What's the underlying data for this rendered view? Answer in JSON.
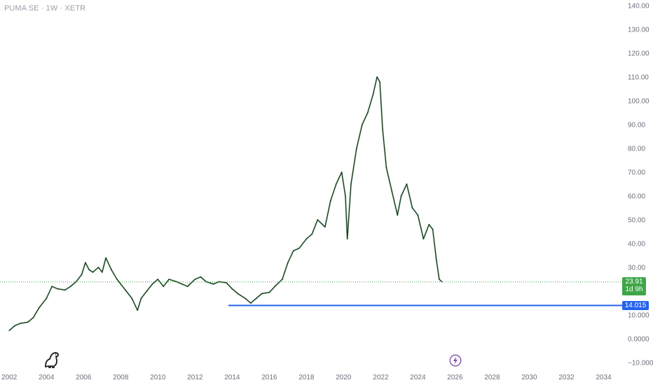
{
  "header": {
    "title": "PUMA SE · 1W · XETR"
  },
  "icons": {
    "logo": "tradingview-dino-icon",
    "event": "lightning-bolt-icon"
  },
  "colors": {
    "price_line": "#1f2a1f",
    "up": "#2e9e44",
    "level_line": "#2563eb",
    "current_line": "#3ea548",
    "axis_text": "#6b6f7a"
  },
  "price_badge": {
    "value": "23.91",
    "countdown": "1d 9h"
  },
  "level_badge": {
    "value": "14.015"
  },
  "chart_data": {
    "type": "line",
    "title": "",
    "xlabel": "",
    "ylabel": "",
    "xlim": [
      2001.5,
      2035.0
    ],
    "ylim": [
      -10,
      140
    ],
    "x_ticks": [
      "2002",
      "2004",
      "2006",
      "2008",
      "2010",
      "2012",
      "2014",
      "2016",
      "2018",
      "2020",
      "2022",
      "2024",
      "2026",
      "2028",
      "2030",
      "2032",
      "2034"
    ],
    "y_ticks": [
      "140.00",
      "130.00",
      "120.00",
      "110.00",
      "100.00",
      "90.00",
      "80.00",
      "70.00",
      "60.00",
      "50.00",
      "40.00",
      "30.00",
      "20.00",
      "10.000",
      "0.0000",
      "−10.000"
    ],
    "series": [
      {
        "x": [
          2002.0,
          2002.3,
          2002.6,
          2003.0,
          2003.3,
          2003.6,
          2004.0,
          2004.3,
          2004.6,
          2005.0,
          2005.3,
          2005.6,
          2005.9,
          2006.1,
          2006.3,
          2006.5,
          2006.8,
          2007.0,
          2007.2,
          2007.5,
          2007.8,
          2008.0,
          2008.3,
          2008.6,
          2008.9,
          2009.1,
          2009.4,
          2009.7,
          2010.0,
          2010.3,
          2010.6,
          2011.0,
          2011.3,
          2011.6,
          2012.0,
          2012.3,
          2012.6,
          2013.0,
          2013.3,
          2013.7,
          2014.0,
          2014.3,
          2014.7,
          2015.0,
          2015.3,
          2015.6,
          2016.0,
          2016.3,
          2016.7,
          2017.0,
          2017.3,
          2017.6,
          2018.0,
          2018.3,
          2018.6,
          2019.0,
          2019.3,
          2019.6,
          2019.9,
          2020.1,
          2020.2,
          2020.4,
          2020.7,
          2021.0,
          2021.3,
          2021.6,
          2021.8,
          2021.95,
          2022.1,
          2022.3,
          2022.6,
          2022.9,
          2023.1,
          2023.4,
          2023.7,
          2024.0,
          2024.3,
          2024.6,
          2024.8,
          2025.0,
          2025.15,
          2025.3
        ],
        "y": [
          3.5,
          5.5,
          6.5,
          7.0,
          9.0,
          13.0,
          17.0,
          22.0,
          21.0,
          20.5,
          22.0,
          24.0,
          27.0,
          32.0,
          29.0,
          28.0,
          30.0,
          28.0,
          34.0,
          29.0,
          25.0,
          23.0,
          20.0,
          17.0,
          12.0,
          17.0,
          20.0,
          23.0,
          25.0,
          22.0,
          25.0,
          24.0,
          23.0,
          22.0,
          25.0,
          26.0,
          24.0,
          23.0,
          24.0,
          23.5,
          21.0,
          19.0,
          17.0,
          15.0,
          17.0,
          19.0,
          19.5,
          22.0,
          25.0,
          32.0,
          37.0,
          38.0,
          42.0,
          44.0,
          50.0,
          47.0,
          58.0,
          65.0,
          70.0,
          60.0,
          42.0,
          65.0,
          80.0,
          90.0,
          95.0,
          103.0,
          110.0,
          108.0,
          88.0,
          72.0,
          62.0,
          52.0,
          60.0,
          65.0,
          55.0,
          52.0,
          42.0,
          48.0,
          46.0,
          33.0,
          25.0,
          23.91
        ]
      }
    ],
    "reference_lines": [
      {
        "value": 14.015,
        "from_x": 2013.8,
        "label": "14.015"
      },
      {
        "value": 23.91,
        "label": "23.91",
        "style": "dotted"
      }
    ],
    "grid": false,
    "legend": "none"
  }
}
